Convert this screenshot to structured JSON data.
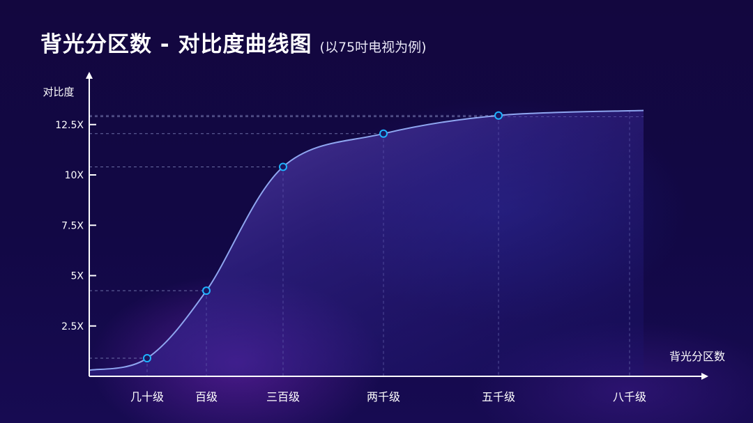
{
  "title": {
    "main": "背光分区数 - 对比度曲线图",
    "sub": "(以75吋电视为例)"
  },
  "colors": {
    "background": "#120845",
    "curve": "#8fa6f0",
    "marker_stroke": "#1fb4ff",
    "grid": "#8a8fc4",
    "axis": "#ffffff"
  },
  "chart_data": {
    "type": "area",
    "ylabel": "对比度",
    "xlabel": "背光分区数",
    "y_ticks": [
      "2.5X",
      "5X",
      "7.5X",
      "10X",
      "12.5X"
    ],
    "y_tick_values": [
      2.5,
      5,
      7.5,
      10,
      12.5
    ],
    "ylim": [
      0,
      13.5
    ],
    "categories": [
      "几十级",
      "百级",
      "三百级",
      "两千级",
      "五千级",
      "八千级"
    ],
    "series": [
      {
        "values": [
          0.9,
          4.25,
          10.4,
          12.05,
          12.95,
          null
        ]
      }
    ],
    "curve_start": 0.3,
    "curve_end": 13.2,
    "grid": true,
    "grid_style": "dashed guide lines from each point to both axes"
  }
}
